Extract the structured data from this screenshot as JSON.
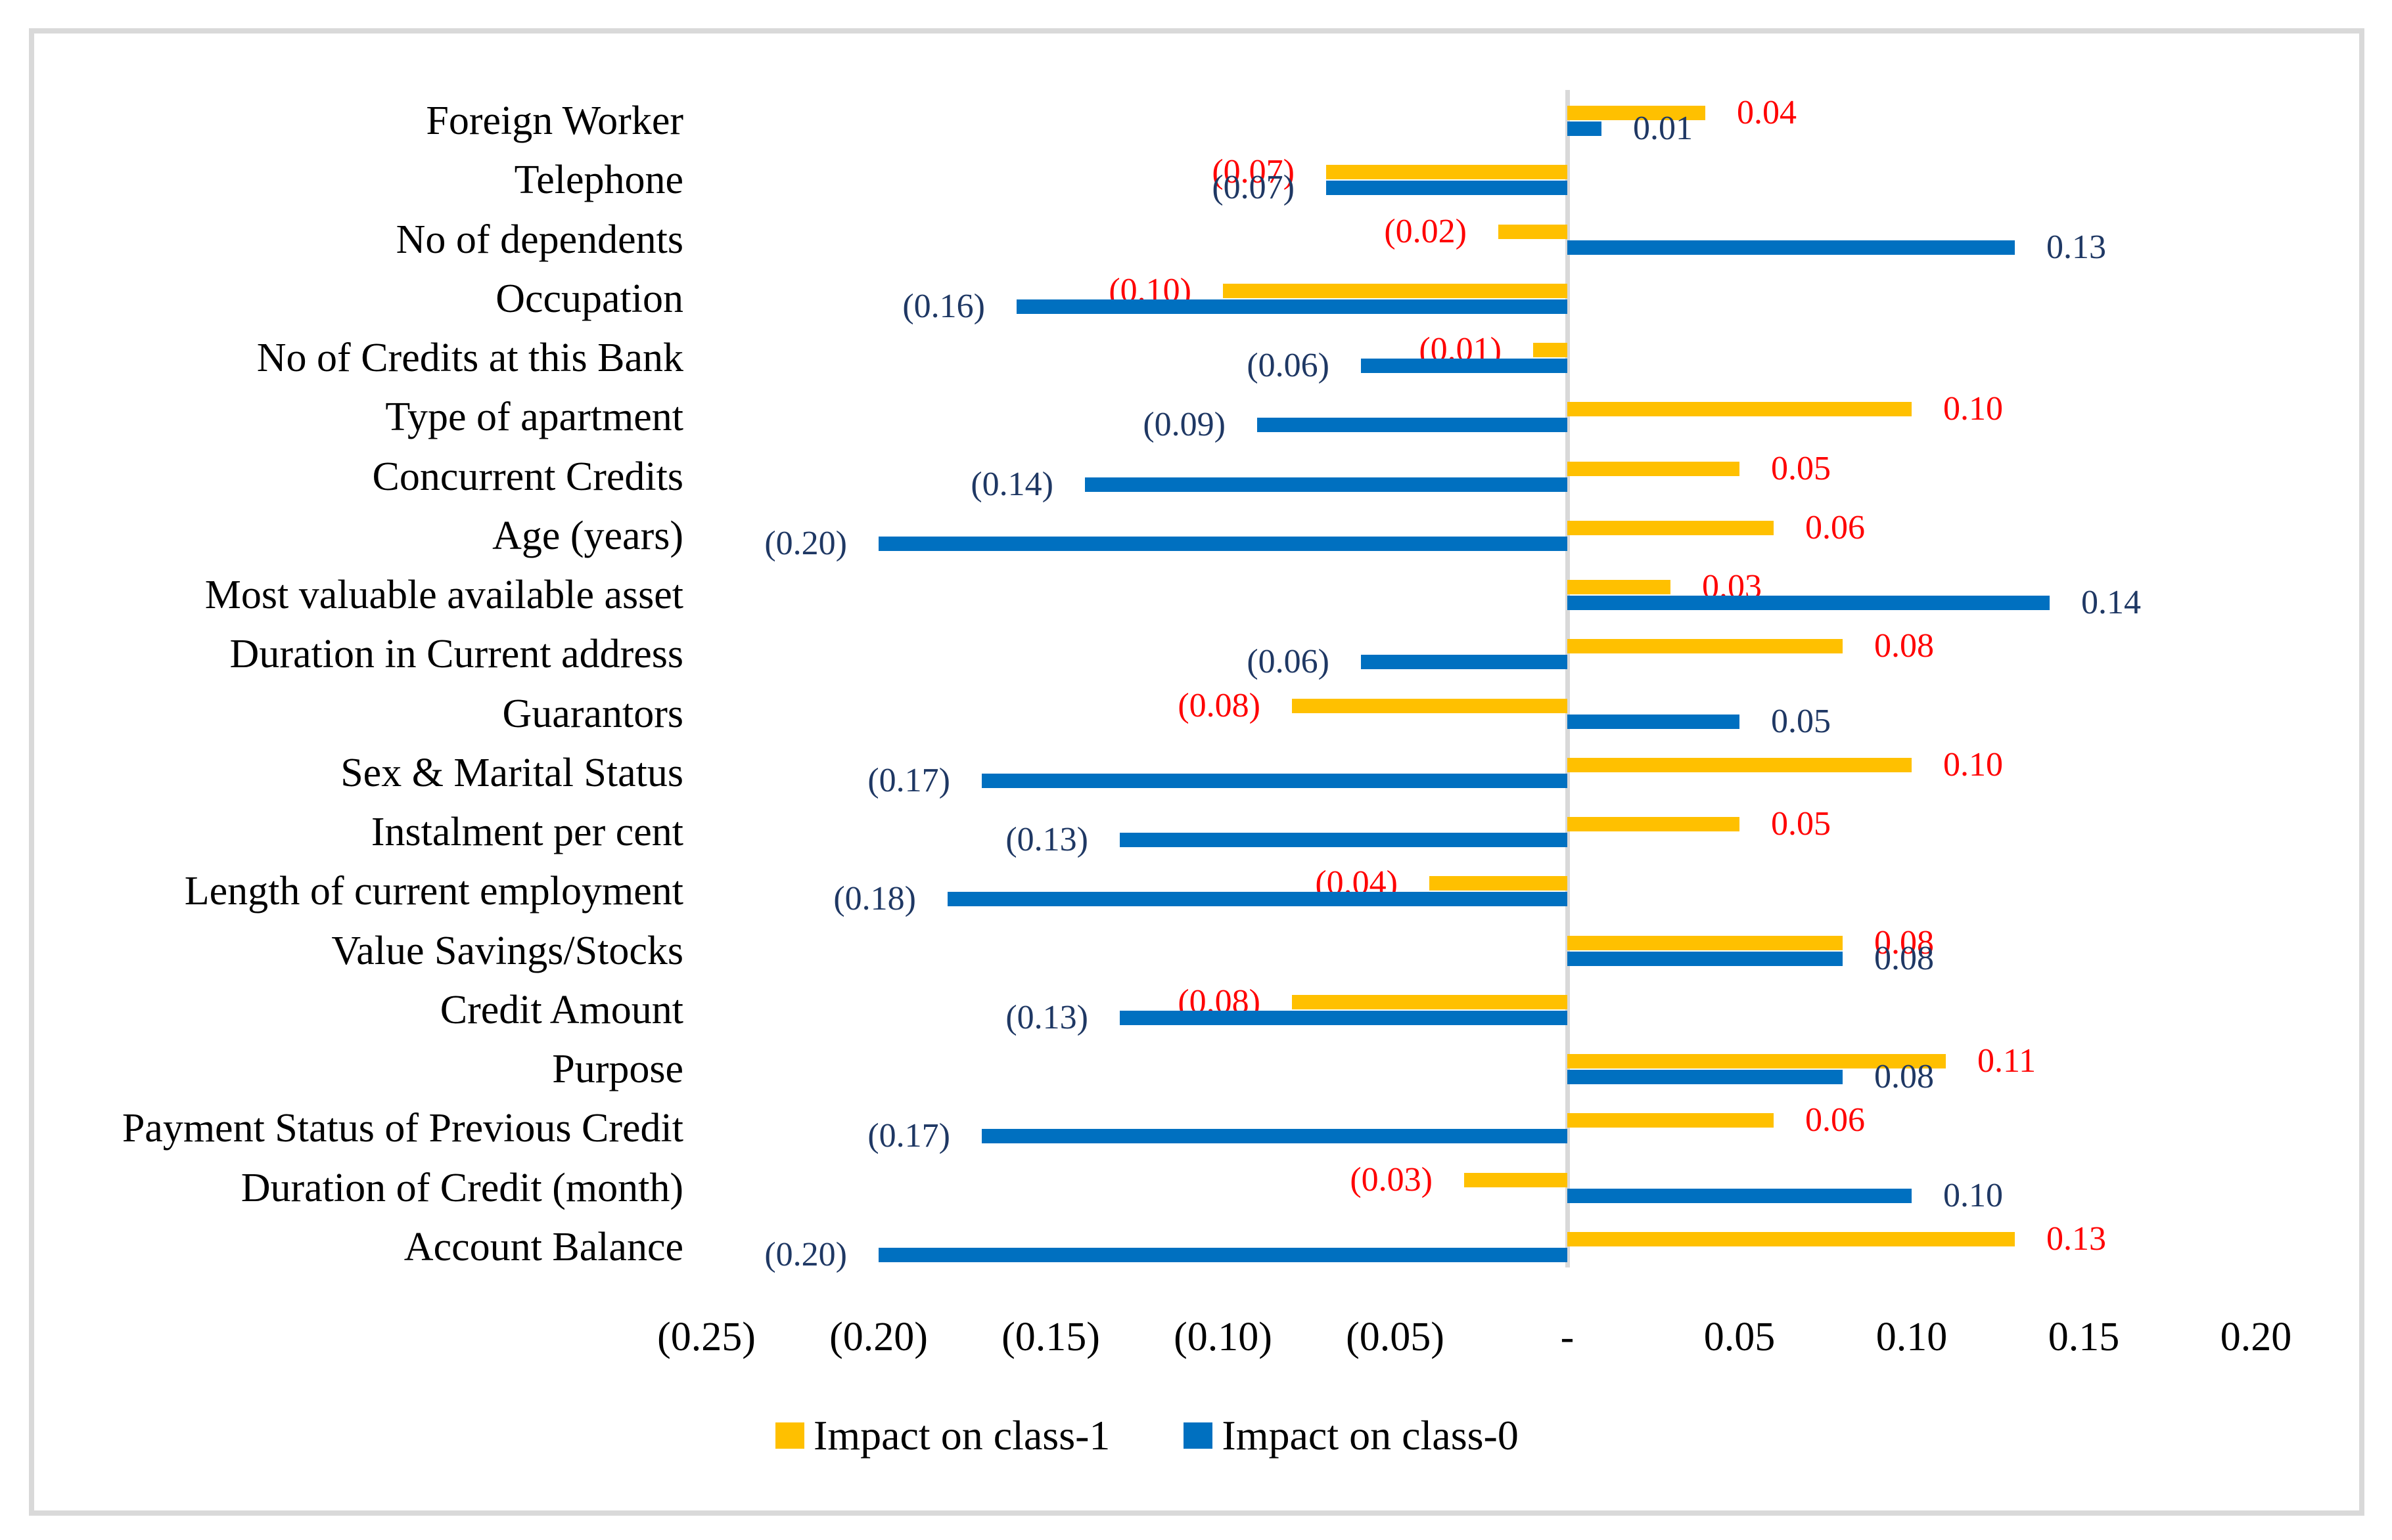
{
  "chart_data": {
    "type": "bar",
    "orientation": "horizontal",
    "title": "",
    "categories": [
      "Foreign Worker",
      "Telephone",
      "No of dependents",
      "Occupation",
      "No of Credits at this Bank",
      "Type of apartment",
      "Concurrent Credits",
      "Age (years)",
      "Most valuable available asset",
      "Duration in Current address",
      "Guarantors",
      "Sex & Marital Status",
      "Instalment per cent",
      "Length of current employment",
      "Value Savings/Stocks",
      "Credit Amount",
      "Purpose",
      "Payment Status of Previous Credit",
      "Duration of Credit (month)",
      "Account Balance"
    ],
    "series": [
      {
        "name": "Impact on class-1",
        "color": "#FFC000",
        "values": [
          0.04,
          -0.07,
          -0.02,
          -0.1,
          -0.01,
          0.1,
          0.05,
          0.06,
          0.03,
          0.08,
          -0.08,
          0.1,
          0.05,
          -0.04,
          0.08,
          -0.08,
          0.11,
          0.06,
          -0.03,
          0.13
        ]
      },
      {
        "name": "Impact on class-0",
        "color": "#0070C0",
        "values": [
          0.01,
          -0.07,
          0.13,
          -0.16,
          -0.06,
          -0.09,
          -0.14,
          -0.2,
          0.14,
          -0.06,
          0.05,
          -0.17,
          -0.13,
          -0.18,
          0.08,
          -0.13,
          0.08,
          -0.17,
          0.1,
          -0.2
        ]
      }
    ],
    "xlim": [
      -0.25,
      0.2
    ],
    "x_ticks": {
      "values": [
        -0.25,
        -0.2,
        -0.15,
        -0.1,
        -0.05,
        0,
        0.05,
        0.1,
        0.15,
        0.2
      ],
      "labels": [
        "(0.25)",
        "(0.20)",
        "(0.15)",
        "(0.10)",
        "(0.05)",
        "-",
        "0.05",
        "0.10",
        "0.15",
        "0.20"
      ]
    },
    "value_label_colors": {
      "class1": "#FF0000",
      "class0": "#1F3864"
    },
    "negative_format": "parentheses",
    "legend_position": "bottom",
    "grid": false,
    "axis_line_color": "#D9D9D9",
    "frame_color": "#D9D9D9"
  }
}
